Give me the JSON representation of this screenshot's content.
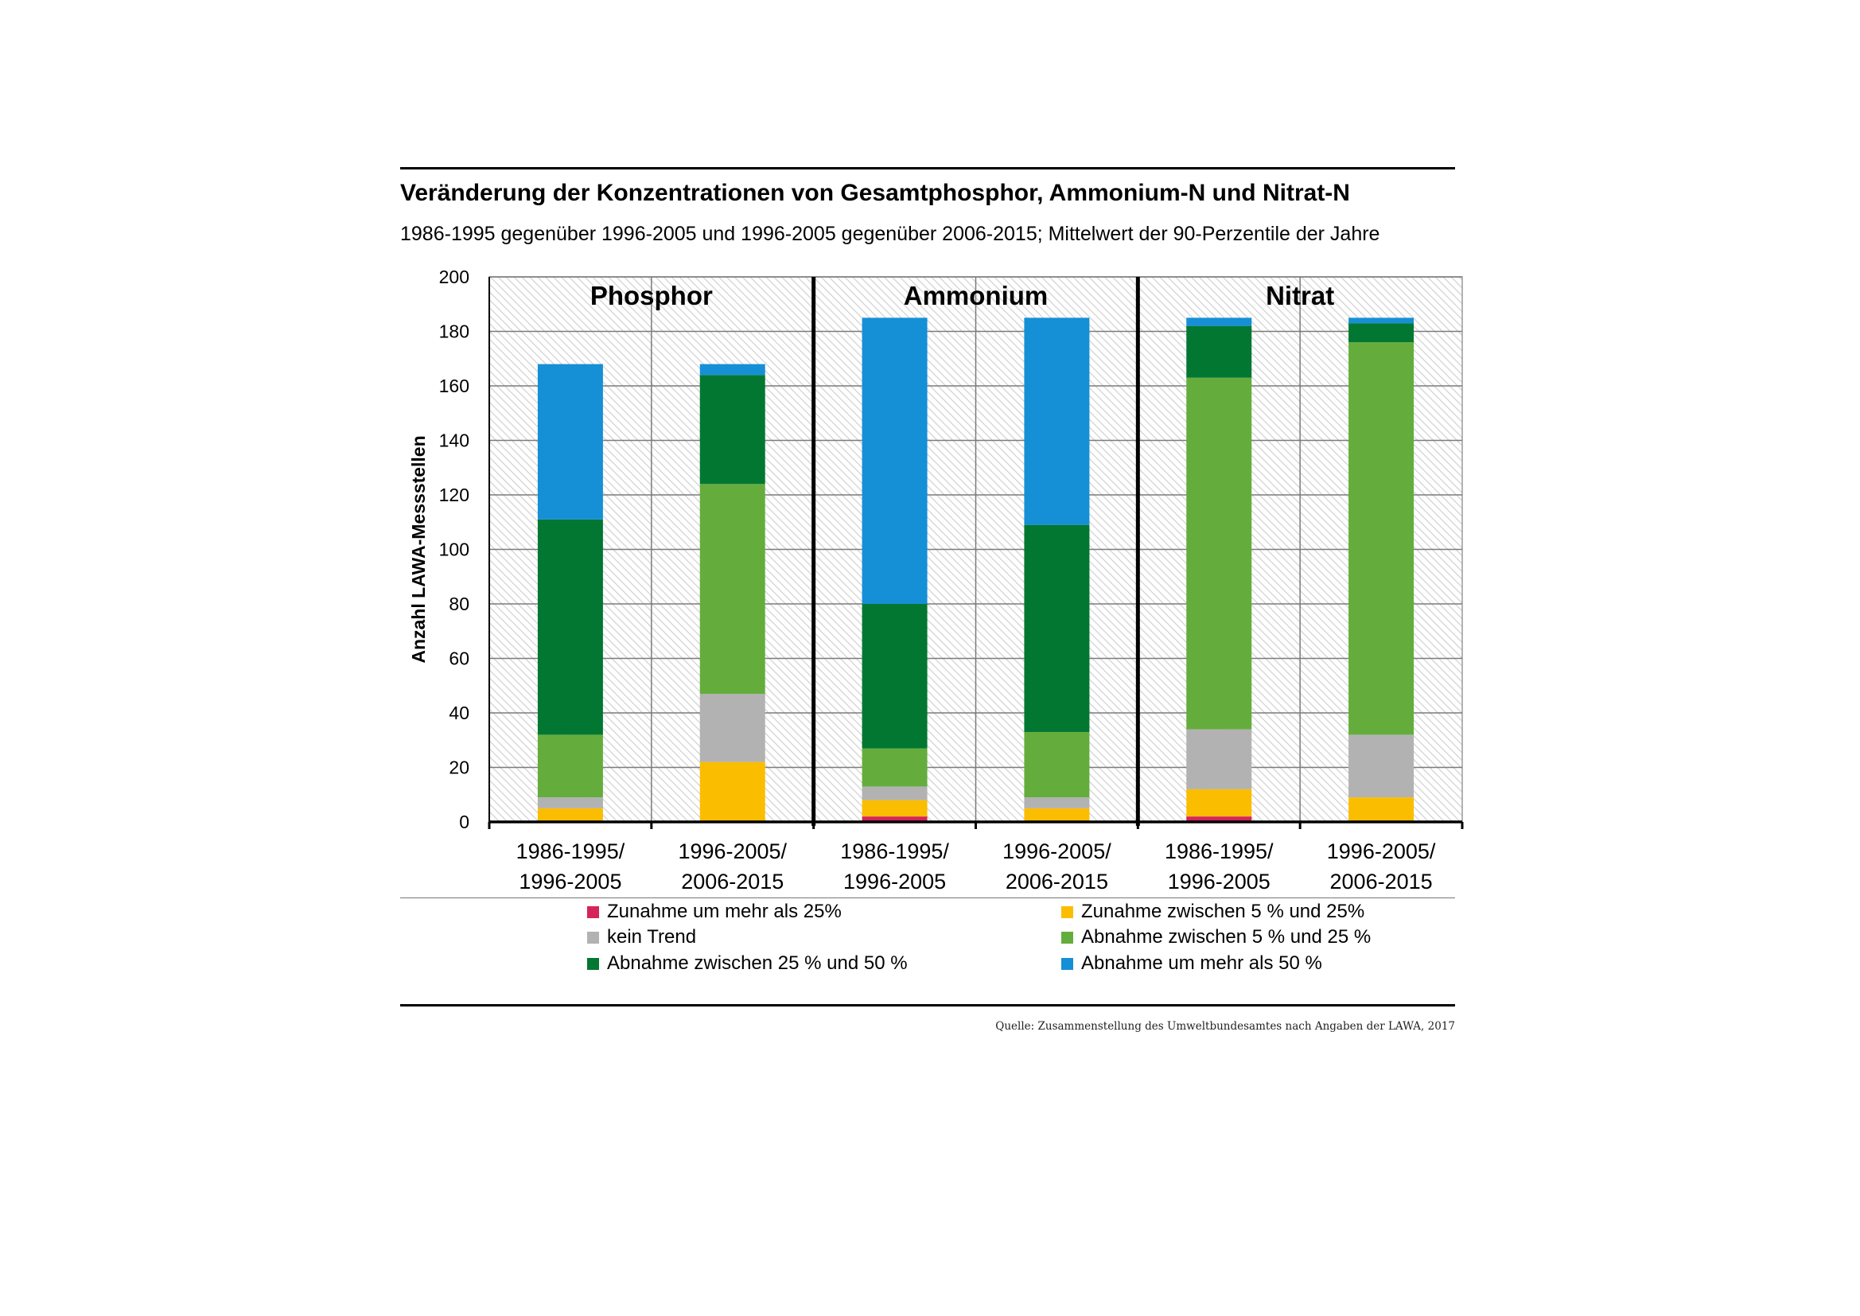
{
  "title": "Veränderung der Konzentrationen von Gesamtphosphor, Ammonium-N und Nitrat-N",
  "subtitle": "1986-1995 gegenüber 1996-2005 und 1996-2005 gegenüber 2006-2015; Mittelwert der 90-Perzentile der Jahre",
  "source": "Quelle: Zusammenstellung des Umweltbundesamtes nach Angaben der LAWA, 2017",
  "chart_data": {
    "type": "bar",
    "stacked": true,
    "title": "Veränderung der Konzentrationen von Gesamtphosphor, Ammonium-N und Nitrat-N",
    "xlabel": "",
    "ylabel": "Anzahl LAWA-Messstellen",
    "ylim": [
      0,
      200
    ],
    "yticks": [
      0,
      20,
      40,
      60,
      80,
      100,
      120,
      140,
      160,
      180,
      200
    ],
    "grid": true,
    "groups": [
      "Phosphor",
      "Ammonium",
      "Nitrat"
    ],
    "categories": [
      [
        "1986-1995/",
        "1996-2005"
      ],
      [
        "1996-2005/",
        "2006-2015"
      ],
      [
        "1986-1995/",
        "1996-2005"
      ],
      [
        "1996-2005/",
        "2006-2015"
      ],
      [
        "1986-1995/",
        "1996-2005"
      ],
      [
        "1996-2005/",
        "2006-2015"
      ]
    ],
    "series": [
      {
        "name": "Zunahme um mehr als 25%",
        "color": "#d6245b",
        "values": [
          0,
          0,
          2,
          0,
          2,
          0
        ]
      },
      {
        "name": "Zunahme zwischen 5 % und 25%",
        "color": "#fbbd00",
        "values": [
          5,
          22,
          6,
          5,
          10,
          9
        ]
      },
      {
        "name": "kein Trend",
        "color": "#b2b2b2",
        "values": [
          4,
          25,
          5,
          4,
          22,
          23
        ]
      },
      {
        "name": "Abnahme zwischen 5 % und 25 %",
        "color": "#64ad3d",
        "values": [
          23,
          77,
          14,
          24,
          129,
          144
        ]
      },
      {
        "name": "Abnahme zwischen 25 % und 50 %",
        "color": "#027732",
        "values": [
          79,
          40,
          53,
          76,
          19,
          7
        ]
      },
      {
        "name": "Abnahme um mehr als 50 %",
        "color": "#1590d7",
        "values": [
          57,
          4,
          105,
          76,
          3,
          2
        ]
      }
    ],
    "legend_order": [
      0,
      1,
      2,
      3,
      4,
      5
    ],
    "legend_position": "bottom"
  }
}
